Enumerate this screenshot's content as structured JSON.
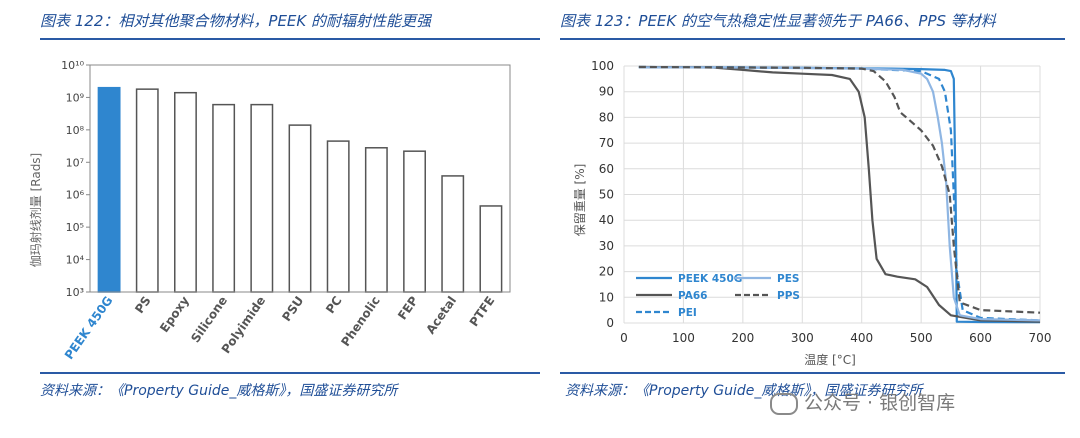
{
  "left_panel": {
    "title": "图表 122：相对其他聚合物材料，PEEK 的耐辐射性能更强",
    "source": "资料来源：《Property Guide_威格斯》，国盛证券研究所"
  },
  "right_panel": {
    "title": "图表 123：PEEK 的空气热稳定性显著领先于 PA66、PPS 等材料",
    "source": "资料来源：《Property Guide_威格斯》，国盛证券研究所"
  },
  "watermark": "公众号 · 银创智库",
  "colors": {
    "title_blue": "#1f4e97",
    "peek_blue": "#2f86cf",
    "bar_outline": "#555555"
  },
  "chart_data": [
    {
      "type": "bar",
      "ylabel": "伽玛射线剂量 [Rads]",
      "yscale": "log",
      "ylim": [
        1000,
        10000000000
      ],
      "yticks": [
        "10³",
        "10⁴",
        "10⁵",
        "10⁶",
        "10⁷",
        "10⁸",
        "10⁹",
        "10¹⁰"
      ],
      "categories": [
        "PEEK 450G",
        "PS",
        "Epoxy",
        "Silicone",
        "Polyimide",
        "PSU",
        "PC",
        "Phenolic",
        "FEP",
        "Acetal",
        "PTFE"
      ],
      "values": [
        2000000000,
        1800000000,
        1400000000,
        600000000,
        600000000,
        140000000,
        45000000,
        28000000,
        22000000,
        3800000,
        450000
      ],
      "highlight": "PEEK 450G",
      "grid": false
    },
    {
      "type": "line",
      "xlabel": "温度 [°C]",
      "ylabel": "保留重量 [%]",
      "xlim": [
        0,
        700
      ],
      "ylim": [
        0,
        100
      ],
      "xticks": [
        "0",
        "100",
        "200",
        "300",
        "400",
        "500",
        "600",
        "700"
      ],
      "yticks": [
        "0",
        "10",
        "20",
        "30",
        "40",
        "50",
        "60",
        "70",
        "80",
        "90",
        "100"
      ],
      "grid": true,
      "legend_position": "bottom-left",
      "series": [
        {
          "name": "PEEK 450G",
          "color": "#2f86cf",
          "dash": "solid",
          "x": [
            25,
            100,
            200,
            300,
            400,
            450,
            500,
            540,
            550,
            555,
            558,
            560,
            600,
            700
          ],
          "y": [
            99.5,
            99.5,
            99.4,
            99.3,
            99.1,
            99,
            98.8,
            98.5,
            98,
            95,
            50,
            0.5,
            0.4,
            0.3
          ]
        },
        {
          "name": "PA66",
          "color": "#555555",
          "dash": "solid",
          "x": [
            25,
            150,
            200,
            250,
            300,
            350,
            380,
            395,
            405,
            412,
            418,
            425,
            440,
            460,
            490,
            510,
            530,
            550,
            600,
            700
          ],
          "y": [
            99.6,
            99.4,
            98.5,
            97.5,
            97,
            96.5,
            95,
            90,
            80,
            60,
            40,
            25,
            19,
            18,
            17,
            14,
            7,
            3,
            1,
            0.5
          ]
        },
        {
          "name": "PEI",
          "color": "#2f86cf",
          "dash": "dashed",
          "x": [
            25,
            200,
            300,
            400,
            500,
            530,
            540,
            550,
            555,
            560,
            570,
            600,
            700
          ],
          "y": [
            99.6,
            99.5,
            99.3,
            99,
            98,
            95,
            90,
            75,
            50,
            20,
            5,
            2,
            1
          ]
        },
        {
          "name": "PES",
          "color": "#8fb6e3",
          "dash": "solid",
          "x": [
            25,
            200,
            300,
            400,
            470,
            500,
            510,
            520,
            528,
            535,
            542,
            548,
            555,
            565,
            600,
            700
          ],
          "y": [
            99.5,
            99.4,
            99.2,
            99,
            98.5,
            97,
            95,
            90,
            80,
            70,
            55,
            30,
            10,
            3,
            1.5,
            1
          ]
        },
        {
          "name": "PPS",
          "color": "#555555",
          "dash": "dashed",
          "x": [
            25,
            200,
            300,
            400,
            420,
            440,
            455,
            465,
            480,
            500,
            520,
            535,
            548,
            555,
            565,
            600,
            650,
            700
          ],
          "y": [
            99.6,
            99.4,
            99.3,
            99,
            98,
            94,
            88,
            82,
            79,
            75,
            69,
            61,
            50,
            30,
            8,
            5,
            4.5,
            4
          ]
        }
      ]
    }
  ]
}
